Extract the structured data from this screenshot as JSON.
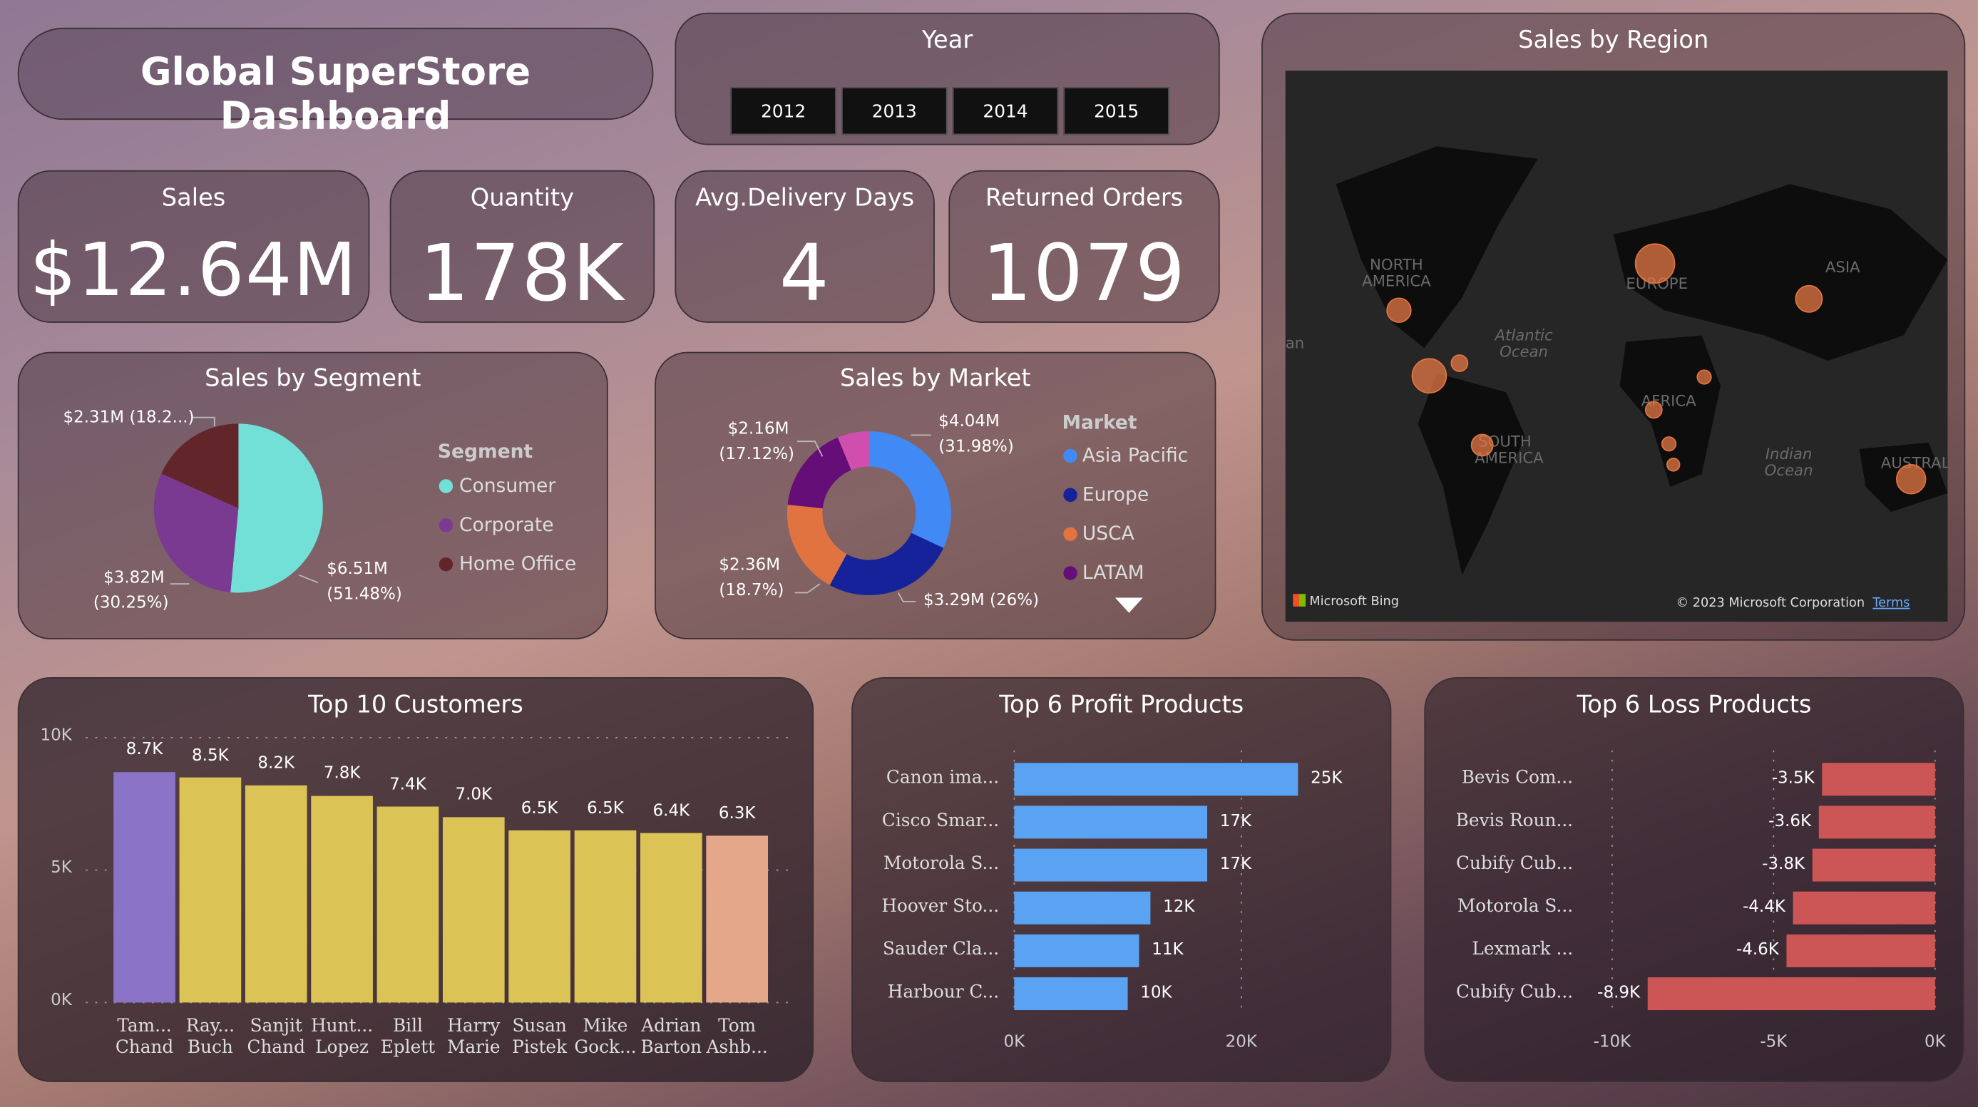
{
  "header": {
    "title": "Global SuperStore Dashboard"
  },
  "year_slicer": {
    "title": "Year",
    "options": [
      "2012",
      "2013",
      "2014",
      "2015"
    ]
  },
  "kpis": [
    {
      "label": "Sales",
      "value": "$12.64M"
    },
    {
      "label": "Quantity",
      "value": "178K"
    },
    {
      "label": "Avg.Delivery Days",
      "value": "4"
    },
    {
      "label": "Returned Orders",
      "value": "1079"
    }
  ],
  "map": {
    "title": "Sales by Region",
    "labels": [
      "NORTH AMERICA",
      "EUROPE",
      "ASIA",
      "Atlantic Ocean",
      "AFRICA",
      "SOUTH AMERICA",
      "Indian Ocean",
      "AUSTRAL",
      "an"
    ],
    "brand": "Microsoft Bing",
    "copyright": "© 2023 Microsoft Corporation",
    "terms": "Terms"
  },
  "chart_data": [
    {
      "type": "pie",
      "title": "Sales by Segment",
      "legend_title": "Segment",
      "legend_placement": "right",
      "slices": [
        {
          "name": "Consumer",
          "value": 6.51,
          "label": "$6.51M",
          "pct": "(51.48%)",
          "color": "#72e0d6"
        },
        {
          "name": "Corporate",
          "value": 3.82,
          "label": "$3.82M",
          "pct": "(30.25%)",
          "color": "#7b3a92"
        },
        {
          "name": "Home Office",
          "value": 2.31,
          "label": "$2.31M (18.2...)",
          "pct": "",
          "color": "#62252a"
        }
      ]
    },
    {
      "type": "pie",
      "subtype": "donut",
      "title": "Sales by Market",
      "legend_title": "Market",
      "legend_placement": "right",
      "slices": [
        {
          "name": "Asia Pacific",
          "value": 4.04,
          "label": "$4.04M",
          "pct": "(31.98%)",
          "color": "#4189f5"
        },
        {
          "name": "Europe",
          "value": 3.29,
          "label": "$3.29M (26%)",
          "pct": "",
          "color": "#15229a"
        },
        {
          "name": "USCA",
          "value": 2.36,
          "label": "$2.36M",
          "pct": "(18.7%)",
          "color": "#e0733f"
        },
        {
          "name": "LATAM",
          "value": 2.16,
          "label": "$2.16M",
          "pct": "(17.12%)",
          "color": "#650e78"
        },
        {
          "value": 0.79,
          "color": "#d04fae"
        }
      ]
    },
    {
      "type": "bar",
      "title": "Top 10 Customers",
      "ylim": [
        0,
        10000
      ],
      "yticks": [
        "0K",
        "5K",
        "10K"
      ],
      "grid": true,
      "categories": [
        [
          "Tam...",
          "Chand"
        ],
        [
          "Ray...",
          "Buch"
        ],
        [
          "Sanjit",
          "Chand"
        ],
        [
          "Hunt...",
          "Lopez"
        ],
        [
          "Bill",
          "Eplett"
        ],
        [
          "Harry",
          "Marie"
        ],
        [
          "Susan",
          "Pistek"
        ],
        [
          "Mike",
          "Gock..."
        ],
        [
          "Adrian",
          "Barton"
        ],
        [
          "Tom",
          "Ashb..."
        ]
      ],
      "values": [
        8700,
        8500,
        8200,
        7800,
        7400,
        7000,
        6500,
        6500,
        6400,
        6300
      ],
      "labels": [
        "8.7K",
        "8.5K",
        "8.2K",
        "7.8K",
        "7.4K",
        "7.0K",
        "6.5K",
        "6.5K",
        "6.4K",
        "6.3K"
      ],
      "colors": [
        "#8b73c8",
        "#dbc355",
        "#dbc355",
        "#dbc355",
        "#dbc355",
        "#dbc355",
        "#dbc355",
        "#dbc355",
        "#dbc355",
        "#e4a78a"
      ]
    },
    {
      "type": "bar",
      "orientation": "horizontal",
      "title": "Top 6 Profit Products",
      "xlim": [
        0,
        25000
      ],
      "xticks": [
        "0K",
        "20K"
      ],
      "color": "#5aa2f2",
      "categories": [
        "Canon ima...",
        "Cisco Smar...",
        "Motorola S...",
        "Hoover Sto...",
        "Sauder Cla...",
        "Harbour C..."
      ],
      "values": [
        25000,
        17000,
        17000,
        12000,
        11000,
        10000
      ],
      "labels": [
        "25K",
        "17K",
        "17K",
        "12K",
        "11K",
        "10K"
      ]
    },
    {
      "type": "bar",
      "orientation": "horizontal",
      "title": "Top 6 Loss Products",
      "xlim": [
        -10000,
        0
      ],
      "xticks": [
        "-10K",
        "-5K",
        "0K"
      ],
      "color": "#cc5656",
      "categories": [
        "Bevis Com...",
        "Bevis Roun...",
        "Cubify Cub...",
        "Motorola S...",
        "Lexmark ...",
        "Cubify Cub..."
      ],
      "values": [
        -3500,
        -3600,
        -3800,
        -4400,
        -4600,
        -8900
      ],
      "labels": [
        "-3.5K",
        "-3.6K",
        "-3.8K",
        "-4.4K",
        "-4.6K",
        "-8.9K"
      ]
    }
  ]
}
